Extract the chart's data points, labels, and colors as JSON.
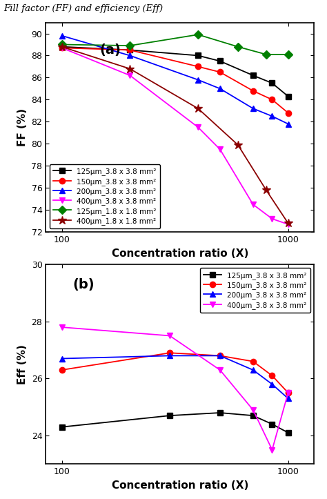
{
  "title_top": "Fill factor (FF) and efficiency (Eff)",
  "panel_a_label": "(a)",
  "panel_b_label": "(b)",
  "xlabel": "Concentration ratio (X)",
  "ylabel_a": "FF (%)",
  "ylabel_b": "Eff (%)",
  "xlim": [
    85,
    1300
  ],
  "ylim_a": [
    72,
    91
  ],
  "ylim_b": [
    23,
    30
  ],
  "yticks_a": [
    72,
    74,
    76,
    78,
    80,
    82,
    84,
    86,
    88,
    90
  ],
  "yticks_b": [
    24,
    26,
    28,
    30
  ],
  "series_a": [
    {
      "label": "125μm_3.8 x 3.8 mm²",
      "color": "#000000",
      "marker": "s",
      "markersize": 6,
      "x": [
        100,
        200,
        400,
        500,
        700,
        850,
        1000
      ],
      "y": [
        88.8,
        88.5,
        88.0,
        87.5,
        86.2,
        85.5,
        84.3
      ]
    },
    {
      "label": "150μm_3.8 x 3.8 mm²",
      "color": "#ff0000",
      "marker": "o",
      "markersize": 6,
      "x": [
        100,
        200,
        400,
        500,
        700,
        850,
        1000
      ],
      "y": [
        88.7,
        88.5,
        87.0,
        86.5,
        84.8,
        84.0,
        82.8
      ]
    },
    {
      "label": "200μm_3.8 x 3.8 mm²",
      "color": "#0000ff",
      "marker": "^",
      "markersize": 6,
      "x": [
        100,
        200,
        400,
        500,
        700,
        850,
        1000
      ],
      "y": [
        89.8,
        88.0,
        85.8,
        85.0,
        83.2,
        82.5,
        81.8
      ]
    },
    {
      "label": "400μm_3.8 x 3.8 mm²",
      "color": "#ff00ff",
      "marker": "v",
      "markersize": 6,
      "x": [
        100,
        200,
        400,
        500,
        700,
        850,
        1000
      ],
      "y": [
        88.7,
        86.2,
        81.5,
        79.5,
        74.5,
        73.2,
        72.7
      ]
    },
    {
      "label": "125μm_1.8 x 1.8 mm²",
      "color": "#008000",
      "marker": "D",
      "markersize": 6,
      "x": [
        100,
        200,
        400,
        600,
        800,
        1000
      ],
      "y": [
        89.0,
        88.9,
        89.9,
        88.8,
        88.1,
        88.1
      ]
    },
    {
      "label": "400μm_1.8 x 1.8 mm²",
      "color": "#8B0000",
      "marker": "*",
      "markersize": 9,
      "x": [
        100,
        200,
        400,
        600,
        800,
        1000
      ],
      "y": [
        88.8,
        86.8,
        83.2,
        79.9,
        75.8,
        72.8
      ]
    }
  ],
  "series_b": [
    {
      "label": "125μm_3.8 x 3.8 mm²",
      "color": "#000000",
      "marker": "s",
      "markersize": 6,
      "x": [
        100,
        300,
        500,
        700,
        850,
        1000
      ],
      "y": [
        24.3,
        24.7,
        24.8,
        24.7,
        24.4,
        24.1
      ]
    },
    {
      "label": "150μm_3.8 x 3.8 mm²",
      "color": "#ff0000",
      "marker": "o",
      "markersize": 6,
      "x": [
        100,
        300,
        500,
        700,
        850,
        1000
      ],
      "y": [
        26.3,
        26.9,
        26.8,
        26.6,
        26.1,
        25.5
      ]
    },
    {
      "label": "200μm_3.8 x 3.8 mm²",
      "color": "#0000ff",
      "marker": "^",
      "markersize": 6,
      "x": [
        100,
        300,
        500,
        700,
        850,
        1000
      ],
      "y": [
        26.7,
        26.8,
        26.8,
        26.3,
        25.8,
        25.3
      ]
    },
    {
      "label": "400μm_3.8 x 3.8 mm²",
      "color": "#ff00ff",
      "marker": "v",
      "markersize": 6,
      "x": [
        100,
        300,
        500,
        700,
        850,
        1000
      ],
      "y": [
        27.8,
        27.5,
        26.3,
        24.9,
        23.5,
        25.5
      ]
    }
  ],
  "legend_a_loc": "lower left",
  "legend_b_loc": "upper right",
  "label_fontsize": 11,
  "tick_fontsize": 9,
  "legend_fontsize": 7.5
}
